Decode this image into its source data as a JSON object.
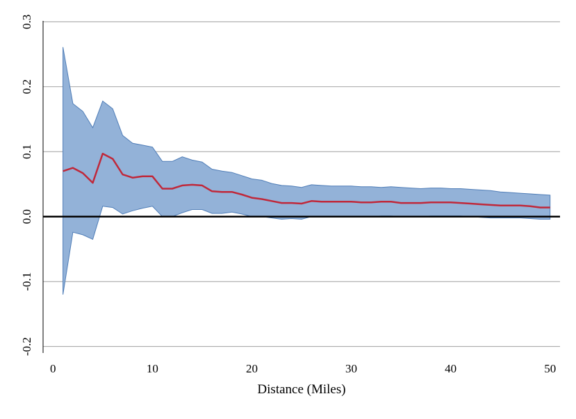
{
  "chart_data": {
    "type": "line",
    "title": "",
    "xlabel": "Distance (Miles)",
    "ylabel": "",
    "xlim": [
      -1,
      51
    ],
    "ylim": [
      -0.21,
      0.31
    ],
    "x_ticks": [
      0,
      10,
      20,
      30,
      40,
      50
    ],
    "x_tick_labels": [
      "0",
      "10",
      "20",
      "30",
      "40",
      "50"
    ],
    "y_ticks": [
      -0.2,
      -0.1,
      0.0,
      0.1,
      0.2,
      0.3
    ],
    "y_tick_labels": [
      "-0.2",
      "-0.1",
      "0.0",
      "0.1",
      "0.2",
      "0.3"
    ],
    "grid": "horizontal",
    "reference_line": 0.0,
    "x": [
      1,
      2,
      3,
      4,
      5,
      6,
      7,
      8,
      9,
      10,
      11,
      12,
      13,
      14,
      15,
      16,
      17,
      18,
      19,
      20,
      21,
      22,
      23,
      24,
      25,
      26,
      27,
      28,
      29,
      30,
      31,
      32,
      33,
      34,
      35,
      36,
      37,
      38,
      39,
      40,
      41,
      42,
      43,
      44,
      45,
      46,
      47,
      48,
      49,
      50
    ],
    "series": [
      {
        "role": "estimate",
        "color": "#c0283a",
        "values": [
          0.07,
          0.075,
          0.067,
          0.052,
          0.097,
          0.089,
          0.065,
          0.06,
          0.062,
          0.062,
          0.043,
          0.043,
          0.048,
          0.049,
          0.048,
          0.039,
          0.038,
          0.038,
          0.034,
          0.029,
          0.027,
          0.024,
          0.021,
          0.021,
          0.02,
          0.024,
          0.023,
          0.023,
          0.023,
          0.023,
          0.022,
          0.022,
          0.023,
          0.023,
          0.021,
          0.021,
          0.021,
          0.022,
          0.022,
          0.022,
          0.021,
          0.02,
          0.019,
          0.018,
          0.017,
          0.017,
          0.017,
          0.016,
          0.014,
          0.014
        ]
      },
      {
        "role": "ci_upper",
        "color": "#5a86c0",
        "values": [
          0.261,
          0.174,
          0.162,
          0.137,
          0.178,
          0.166,
          0.125,
          0.113,
          0.11,
          0.107,
          0.085,
          0.085,
          0.092,
          0.087,
          0.084,
          0.073,
          0.07,
          0.068,
          0.063,
          0.058,
          0.056,
          0.051,
          0.048,
          0.047,
          0.045,
          0.049,
          0.048,
          0.047,
          0.047,
          0.047,
          0.046,
          0.046,
          0.045,
          0.046,
          0.045,
          0.044,
          0.043,
          0.044,
          0.044,
          0.043,
          0.043,
          0.042,
          0.041,
          0.04,
          0.038,
          0.037,
          0.036,
          0.035,
          0.034,
          0.033
        ]
      },
      {
        "role": "ci_lower",
        "color": "#5a86c0",
        "values": [
          -0.12,
          -0.024,
          -0.028,
          -0.035,
          0.016,
          0.014,
          0.004,
          0.009,
          0.013,
          0.016,
          0.0,
          0.0,
          0.006,
          0.011,
          0.011,
          0.005,
          0.005,
          0.007,
          0.004,
          0.0,
          0.0,
          -0.002,
          -0.004,
          -0.003,
          -0.004,
          0.0,
          0.0,
          0.0,
          0.0,
          0.0,
          0.0,
          0.0,
          0.001,
          0.001,
          0.0,
          0.0,
          0.0,
          0.001,
          0.001,
          0.001,
          0.001,
          0.0,
          -0.001,
          -0.002,
          -0.002,
          -0.002,
          -0.002,
          -0.003,
          -0.004,
          -0.004
        ]
      }
    ],
    "colors": {
      "band_fill": "#93b2d8",
      "band_stroke": "#4f7db7",
      "estimate_line": "#c0283a",
      "grid": "#a0a0a0",
      "zero_line": "#000000"
    }
  }
}
